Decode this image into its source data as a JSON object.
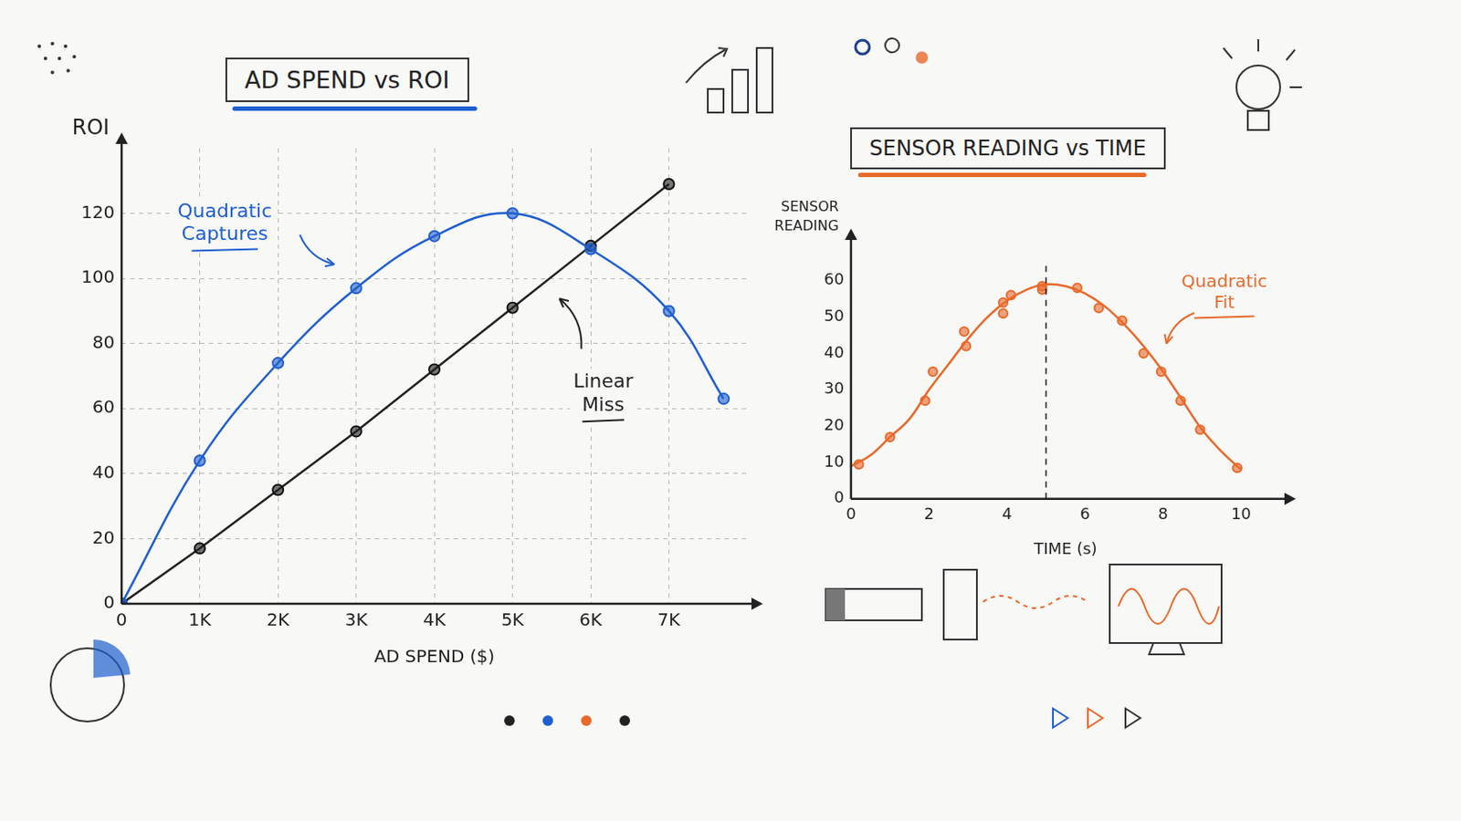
{
  "chart_data": [
    {
      "type": "line",
      "title": "AD SPEND vs ROI",
      "x_label": "AD SPEND ($)",
      "y_label": "ROI",
      "x": [
        0,
        1000,
        2000,
        3000,
        4000,
        5000,
        6000,
        7000,
        7700
      ],
      "series": [
        {
          "type": "line",
          "color": "#1f5fcf",
          "values": [
            0,
            44,
            74,
            97,
            113,
            120,
            109,
            90,
            63
          ],
          "marker": "circle",
          "line_style": "smooth"
        },
        {
          "type": "line",
          "color": "#222222",
          "values": [
            0,
            17,
            35,
            53,
            72,
            91,
            110,
            129,
            null
          ],
          "marker": "circle",
          "line_style": "solid"
        }
      ],
      "xlim": [
        0,
        8000
      ],
      "xticks": [
        0,
        {
          "value": 1000,
          "label": "1K"
        },
        {
          "value": 2000,
          "label": "2K"
        },
        {
          "value": 3000,
          "label": "3K"
        },
        {
          "value": 4000,
          "label": "4K"
        },
        {
          "value": 5000,
          "label": "5K"
        },
        {
          "value": 6000,
          "label": "6K"
        },
        {
          "value": 7000,
          "label": "7K"
        }
      ],
      "ylim": [
        0,
        140
      ],
      "yticks": [
        0,
        20,
        40,
        60,
        80,
        100,
        120
      ],
      "grid": true,
      "annotations": [
        "Quadratic Captures",
        "Linear Miss"
      ]
    },
    {
      "type": "scatter",
      "title": "SENSOR READING vs TIME",
      "x_label": "TIME (s)",
      "y_label": "SENSOR READING",
      "series": [
        {
          "type": "scatter",
          "color": "#e8692a",
          "x": [
            0.2,
            1.0,
            1.9,
            2.1,
            2.9,
            2.95,
            3.9,
            3.9,
            4.1,
            4.9,
            4.9,
            5.8,
            6.35,
            6.95,
            7.5,
            7.95,
            8.45,
            8.95,
            9.9
          ],
          "values": [
            9.5,
            17,
            27,
            35,
            46,
            42,
            51,
            54,
            56,
            58.5,
            57.5,
            58,
            52.5,
            49,
            40,
            35,
            27,
            19,
            8.5
          ],
          "marker": "circle"
        },
        {
          "type": "line",
          "color": "#e8692a",
          "x": [
            0,
            0.5,
            1,
            1.5,
            2,
            2.5,
            3,
            3.5,
            4,
            4.5,
            5,
            5.5,
            6,
            6.5,
            7,
            7.5,
            8,
            8.5,
            9,
            9.5,
            10
          ],
          "values": [
            9,
            12,
            17,
            22,
            30,
            37,
            44,
            50,
            54.5,
            57.5,
            59,
            58.5,
            56.5,
            53,
            48,
            42,
            35,
            27,
            19,
            13,
            8
          ],
          "marker": "none",
          "line_style": "smooth"
        }
      ],
      "xlim": [
        0,
        11
      ],
      "xticks": [
        0,
        2,
        4,
        6,
        8,
        10
      ],
      "ylim": [
        0,
        70
      ],
      "yticks": [
        0,
        10,
        20,
        30,
        40,
        50,
        60
      ],
      "grid": false,
      "reference_x": 5,
      "annotations": [
        "Quadratic Fit"
      ]
    }
  ]
}
